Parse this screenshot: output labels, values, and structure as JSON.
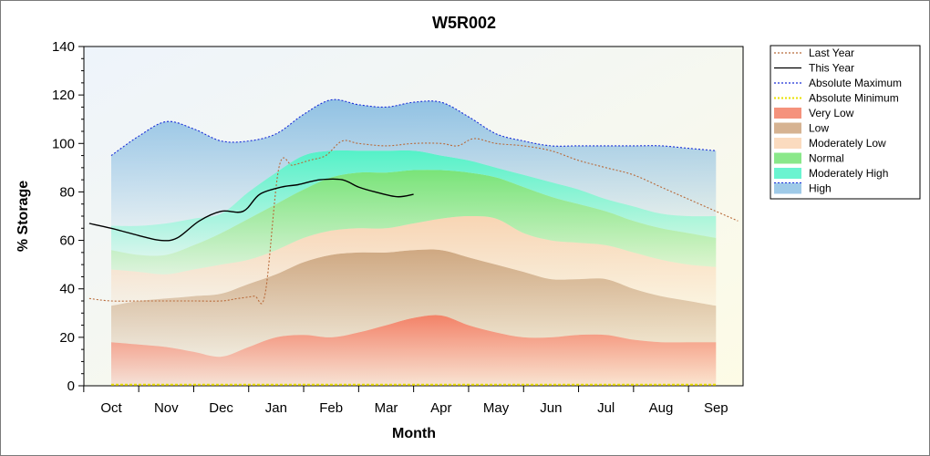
{
  "chart_data": {
    "type": "area",
    "title": "W5R002",
    "xlabel": "Month",
    "ylabel": "% Storage",
    "ylim": [
      0,
      140
    ],
    "yticks": [
      0,
      20,
      40,
      60,
      80,
      100,
      120,
      140
    ],
    "categories": [
      "Oct",
      "Nov",
      "Dec",
      "Jan",
      "Feb",
      "Mar",
      "Apr",
      "May",
      "Jun",
      "Jul",
      "Aug",
      "Sep"
    ],
    "legend_position": "right",
    "bands_x": [
      0,
      0.5,
      1,
      1.5,
      2,
      2.5,
      3,
      3.5,
      4,
      4.5,
      5,
      5.5,
      6,
      6.5,
      7,
      7.5,
      8,
      8.5,
      9,
      9.5,
      10,
      10.5,
      11
    ],
    "bands": [
      {
        "name": "Very Low",
        "color": "#f26d50",
        "upper": [
          18,
          17,
          16,
          14,
          12,
          16,
          20,
          21,
          20,
          22,
          25,
          28,
          29,
          25,
          22,
          20,
          20,
          21,
          21,
          19,
          18,
          18,
          18
        ]
      },
      {
        "name": "Low",
        "color": "#c89a6e",
        "upper": [
          33,
          35,
          36,
          37,
          38,
          42,
          46,
          51,
          54,
          55,
          55,
          56,
          56,
          53,
          50,
          47,
          44,
          44,
          44,
          40,
          37,
          35,
          33
        ]
      },
      {
        "name": "Moderately Low",
        "color": "#f9cfa9",
        "upper": [
          48,
          47,
          46,
          48,
          50,
          52,
          56,
          61,
          64,
          65,
          65,
          67,
          69,
          70,
          69,
          63,
          60,
          59,
          58,
          55,
          52,
          50,
          49
        ]
      },
      {
        "name": "Normal",
        "color": "#63e063",
        "upper": [
          56,
          54,
          54,
          58,
          63,
          69,
          75,
          81,
          86,
          88,
          88,
          89,
          89,
          88,
          86,
          82,
          78,
          75,
          72,
          68,
          65,
          63,
          61
        ]
      },
      {
        "name": "Moderately High",
        "color": "#38f0c0",
        "upper": [
          66,
          66,
          67,
          69,
          71,
          80,
          88,
          95,
          97,
          97,
          97,
          97,
          95,
          93,
          90,
          87,
          84,
          81,
          77,
          74,
          71,
          70,
          70
        ]
      },
      {
        "name": "High",
        "color": "#7fb8e0",
        "upper": [
          95,
          103,
          109,
          106,
          101,
          101,
          104,
          112,
          118,
          116,
          115,
          117,
          117,
          111,
          104,
          101,
          99,
          99,
          99,
          99,
          99,
          98,
          97
        ]
      }
    ],
    "series": [
      {
        "name": "Last Year",
        "color": "#b86a3a",
        "style": "dotted",
        "x": [
          -0.4,
          0,
          0.5,
          1,
          1.5,
          2,
          2.3,
          2.6,
          2.8,
          3.05,
          3.3,
          3.6,
          3.9,
          4.2,
          4.5,
          5,
          5.5,
          6,
          6.3,
          6.6,
          7,
          7.5,
          8,
          8.5,
          9,
          9.5,
          10,
          10.5,
          11,
          11.4
        ],
        "y": [
          36,
          35,
          35,
          35,
          35,
          35,
          36,
          37,
          38,
          90,
          91,
          93,
          95,
          101,
          100,
          99,
          100,
          100,
          99,
          102,
          100,
          99,
          97,
          93,
          90,
          87,
          82,
          77,
          72,
          68
        ]
      },
      {
        "name": "This Year",
        "color": "#000000",
        "style": "solid",
        "x": [
          -0.4,
          0,
          0.5,
          0.9,
          1.2,
          1.6,
          2.0,
          2.4,
          2.7,
          3.1,
          3.4,
          3.8,
          4.2,
          4.5,
          4.8,
          5.2,
          5.5
        ],
        "y": [
          67,
          65,
          62,
          60,
          61,
          68,
          72,
          72,
          79,
          82,
          83,
          85,
          85,
          82,
          80,
          78,
          79
        ]
      },
      {
        "name": "Absolute Maximum",
        "color": "#1a2ed8",
        "style": "dotted",
        "x": [
          0,
          0.5,
          1,
          1.5,
          2,
          2.5,
          3,
          3.5,
          4,
          4.5,
          5,
          5.5,
          6,
          6.5,
          7,
          7.5,
          8,
          8.5,
          9,
          9.5,
          10,
          10.5,
          11
        ],
        "y": [
          95,
          103,
          109,
          106,
          101,
          101,
          104,
          112,
          118,
          116,
          115,
          117,
          117,
          111,
          104,
          101,
          99,
          99,
          99,
          99,
          99,
          98,
          97
        ]
      },
      {
        "name": "Absolute Minimum",
        "color": "#e8e000",
        "style": "dotted",
        "x": [
          0,
          11
        ],
        "y": [
          0.5,
          0.5
        ]
      }
    ],
    "legend": [
      "Last Year",
      "This Year",
      "Absolute Maximum",
      "Absolute Minimum",
      "Very Low",
      "Low",
      "Moderately Low",
      "Normal",
      "Moderately High",
      "High"
    ]
  }
}
